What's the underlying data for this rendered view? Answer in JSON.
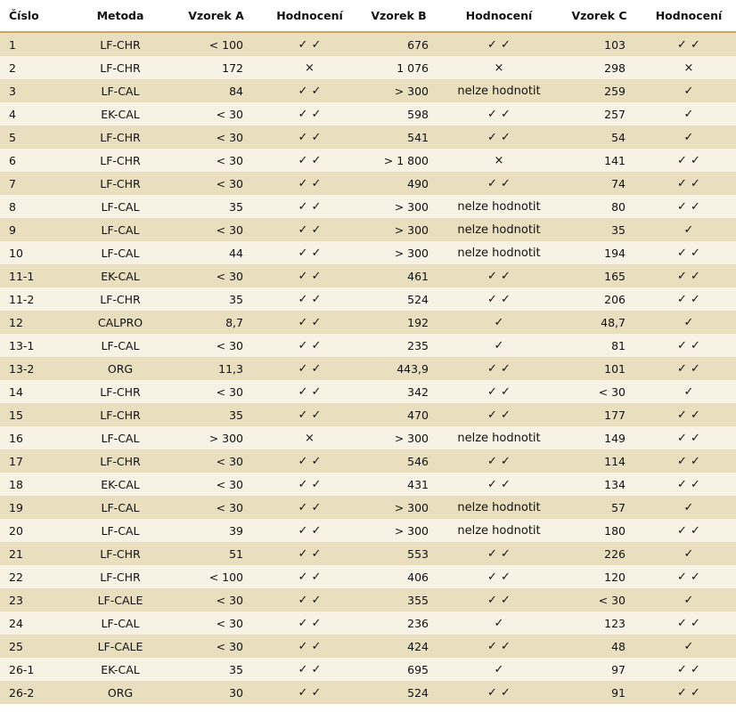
{
  "headers": [
    "Číslo",
    "Metoda",
    "Vzorek A",
    "Hodnocení",
    "Vzorek B",
    "Hodnocení",
    "Vzorek C",
    "Hodnocení"
  ],
  "rows": [
    [
      "1",
      "LF-CHR",
      "< 100",
      "✓ ✓",
      "676",
      "✓ ✓",
      "103",
      "✓ ✓"
    ],
    [
      "2",
      "LF-CHR",
      "172",
      "×",
      "1 076",
      "×",
      "298",
      "×"
    ],
    [
      "3",
      "LF-CAL",
      "84",
      "✓ ✓",
      "> 300",
      "nelze hodnotit",
      "259",
      "✓"
    ],
    [
      "4",
      "EK-CAL",
      "< 30",
      "✓ ✓",
      "598",
      "✓ ✓",
      "257",
      "✓"
    ],
    [
      "5",
      "LF-CHR",
      "< 30",
      "✓ ✓",
      "541",
      "✓ ✓",
      "54",
      "✓"
    ],
    [
      "6",
      "LF-CHR",
      "< 30",
      "✓ ✓",
      "> 1 800",
      "×",
      "141",
      "✓ ✓"
    ],
    [
      "7",
      "LF-CHR",
      "< 30",
      "✓ ✓",
      "490",
      "✓ ✓",
      "74",
      "✓ ✓"
    ],
    [
      "8",
      "LF-CAL",
      "35",
      "✓ ✓",
      "> 300",
      "nelze hodnotit",
      "80",
      "✓ ✓"
    ],
    [
      "9",
      "LF-CAL",
      "< 30",
      "✓ ✓",
      "> 300",
      "nelze hodnotit",
      "35",
      "✓"
    ],
    [
      "10",
      "LF-CAL",
      "44",
      "✓ ✓",
      "> 300",
      "nelze hodnotit",
      "194",
      "✓ ✓"
    ],
    [
      "11-1",
      "EK-CAL",
      "< 30",
      "✓ ✓",
      "461",
      "✓ ✓",
      "165",
      "✓ ✓"
    ],
    [
      "11-2",
      "LF-CHR",
      "35",
      "✓ ✓",
      "524",
      "✓ ✓",
      "206",
      "✓ ✓"
    ],
    [
      "12",
      "CALPRO",
      "8,7",
      "✓ ✓",
      "192",
      "✓",
      "48,7",
      "✓"
    ],
    [
      "13-1",
      "LF-CAL",
      "< 30",
      "✓ ✓",
      "235",
      "✓",
      "81",
      "✓ ✓"
    ],
    [
      "13-2",
      "ORG",
      "11,3",
      "✓ ✓",
      "443,9",
      "✓ ✓",
      "101",
      "✓ ✓"
    ],
    [
      "14",
      "LF-CHR",
      "< 30",
      "✓ ✓",
      "342",
      "✓ ✓",
      "< 30",
      "✓"
    ],
    [
      "15",
      "LF-CHR",
      "35",
      "✓ ✓",
      "470",
      "✓ ✓",
      "177",
      "✓ ✓"
    ],
    [
      "16",
      "LF-CAL",
      "> 300",
      "×",
      "> 300",
      "nelze hodnotit",
      "149",
      "✓ ✓"
    ],
    [
      "17",
      "LF-CHR",
      "< 30",
      "✓ ✓",
      "546",
      "✓ ✓",
      "114",
      "✓ ✓"
    ],
    [
      "18",
      "EK-CAL",
      "< 30",
      "✓ ✓",
      "431",
      "✓ ✓",
      "134",
      "✓ ✓"
    ],
    [
      "19",
      "LF-CAL",
      "< 30",
      "✓ ✓",
      "> 300",
      "nelze hodnotit",
      "57",
      "✓"
    ],
    [
      "20",
      "LF-CAL",
      "39",
      "✓ ✓",
      "> 300",
      "nelze hodnotit",
      "180",
      "✓ ✓"
    ],
    [
      "21",
      "LF-CHR",
      "51",
      "✓ ✓",
      "553",
      "✓ ✓",
      "226",
      "✓"
    ],
    [
      "22",
      "LF-CHR",
      "< 100",
      "✓ ✓",
      "406",
      "✓ ✓",
      "120",
      "✓ ✓"
    ],
    [
      "23",
      "LF-CALE",
      "< 30",
      "✓ ✓",
      "355",
      "✓ ✓",
      "< 30",
      "✓"
    ],
    [
      "24",
      "LF-CAL",
      "< 30",
      "✓ ✓",
      "236",
      "✓",
      "123",
      "✓ ✓"
    ],
    [
      "25",
      "LF-CALE",
      "< 30",
      "✓ ✓",
      "424",
      "✓ ✓",
      "48",
      "✓"
    ],
    [
      "26-1",
      "EK-CAL",
      "35",
      "✓ ✓",
      "695",
      "✓",
      "97",
      "✓ ✓"
    ],
    [
      "26-2",
      "ORG",
      "30",
      "✓ ✓",
      "524",
      "✓ ✓",
      "91",
      "✓ ✓"
    ]
  ]
}
